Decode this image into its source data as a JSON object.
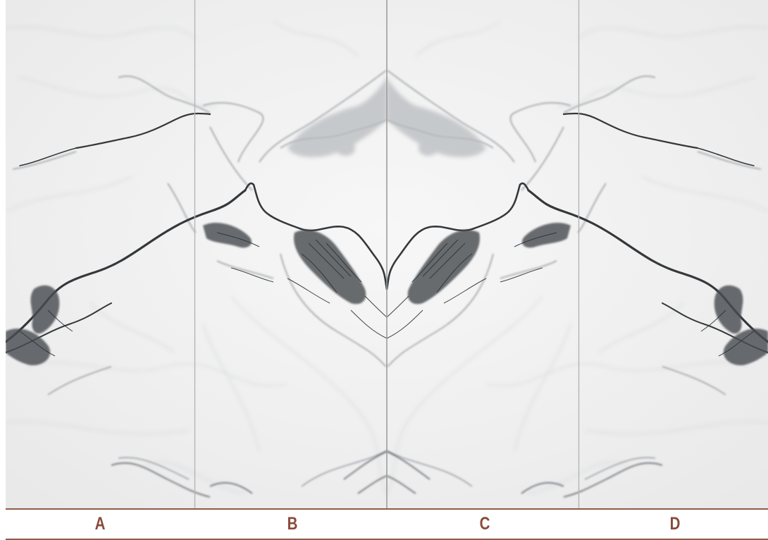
{
  "colors": {
    "label_text": "#8a4a37",
    "rule": "#8f5a48",
    "seam": "#b5b5b5",
    "marble_base": "#f1f1f1",
    "vein_dark": "#3a3d40",
    "vein_mid": "#8d9196",
    "vein_light": "#c9cbce"
  },
  "panels": [
    {
      "label": "A"
    },
    {
      "label": "B"
    },
    {
      "label": "C"
    },
    {
      "label": "D"
    }
  ]
}
